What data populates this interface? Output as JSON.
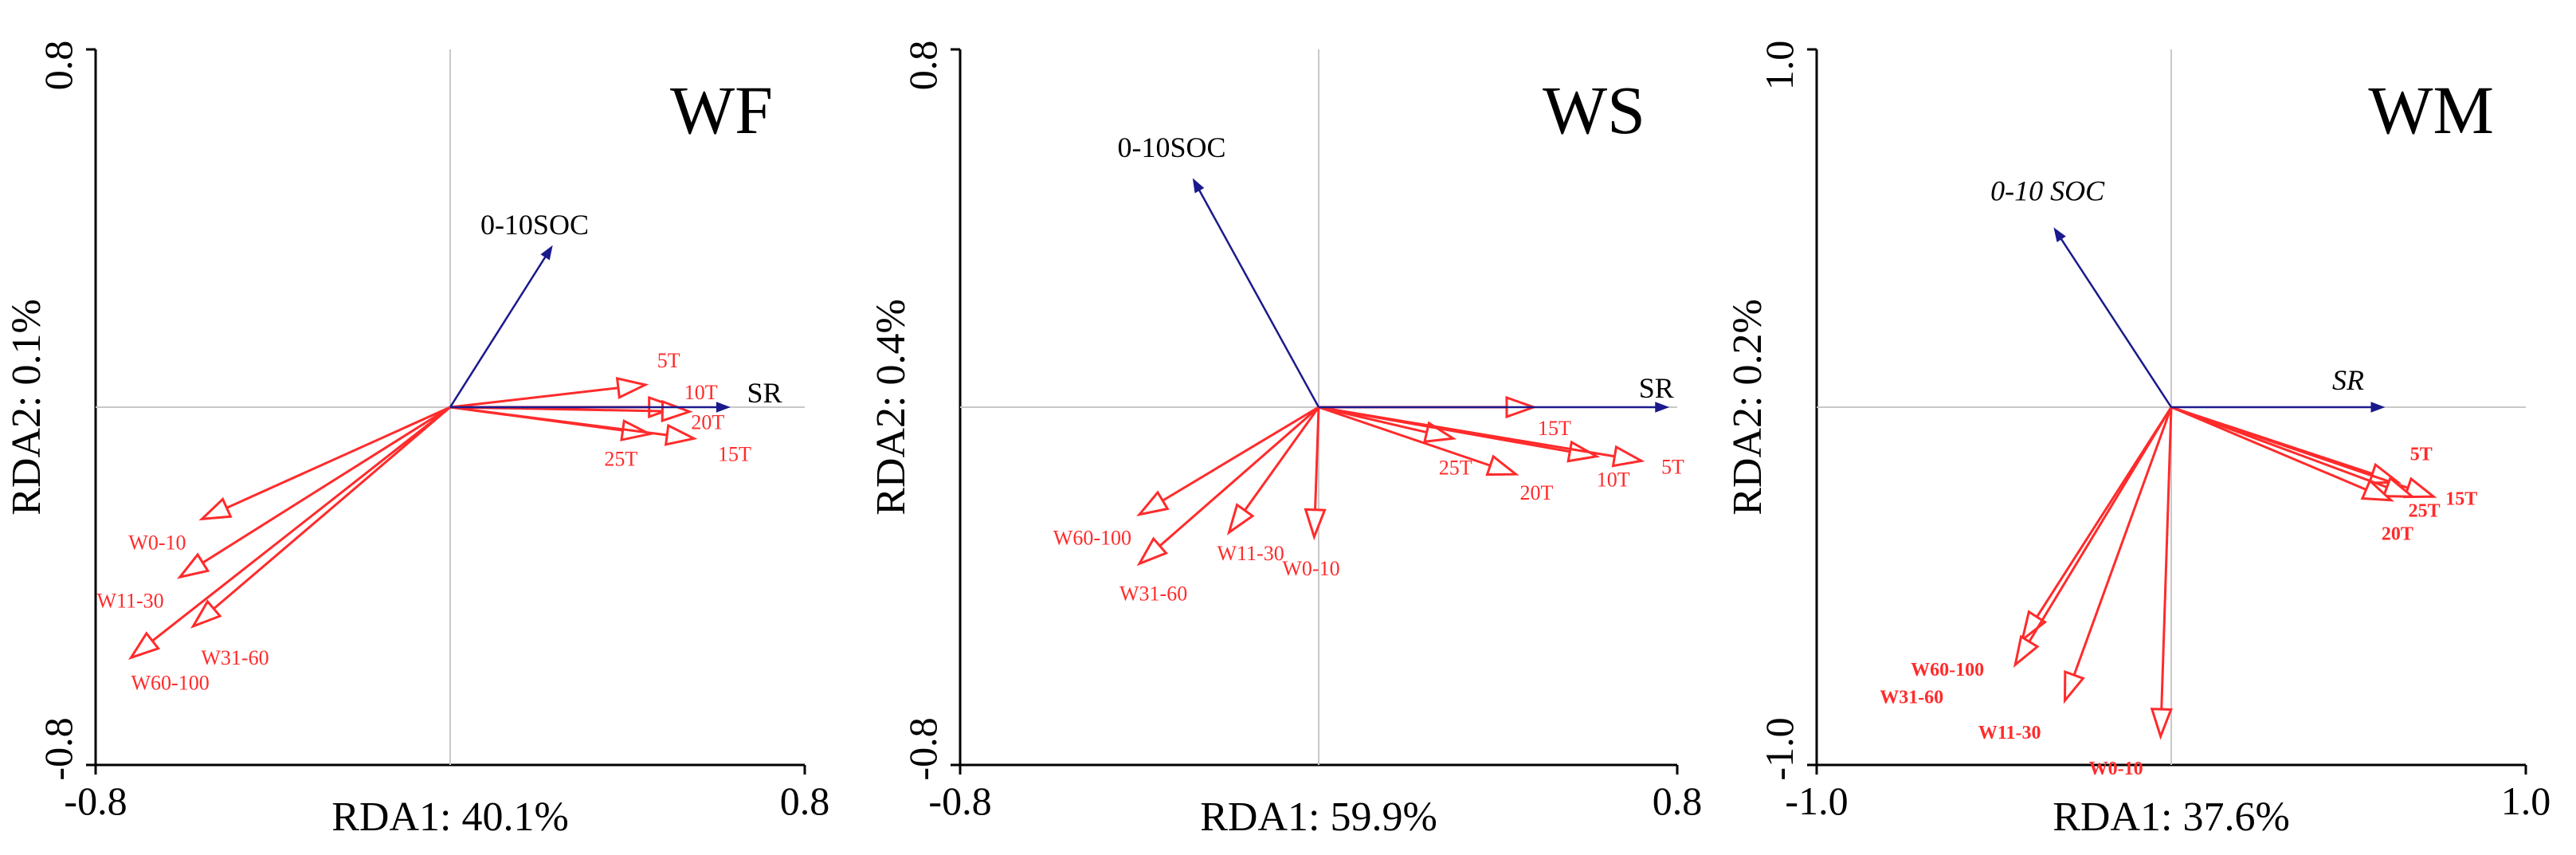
{
  "chart_data": [
    {
      "type": "scatter",
      "panel": "WF",
      "title": "WF",
      "xlabel": "RDA1: 40.1%",
      "ylabel": "RDA2: 0.1%",
      "xlim": [
        -0.8,
        0.8
      ],
      "ylim": [
        -0.8,
        0.8
      ],
      "xticks": [
        "-0.8",
        "0.8"
      ],
      "yticks": [
        "0.8",
        "-0.8"
      ],
      "label_style": "normal",
      "env_vectors": [
        {
          "name": "0-10SOC",
          "x": 0.23,
          "y": 0.36
        },
        {
          "name": "SR",
          "x": 0.63,
          "y": 0.0
        }
      ],
      "response_vectors": [
        {
          "name": "5T",
          "x": 0.44,
          "y": 0.05
        },
        {
          "name": "10T",
          "x": 0.51,
          "y": 0.0
        },
        {
          "name": "20T",
          "x": 0.54,
          "y": -0.01
        },
        {
          "name": "25T",
          "x": 0.45,
          "y": -0.06
        },
        {
          "name": "15T",
          "x": 0.55,
          "y": -0.07
        },
        {
          "name": "W0-10",
          "x": -0.56,
          "y": -0.25
        },
        {
          "name": "W11-30",
          "x": -0.61,
          "y": -0.38
        },
        {
          "name": "W31-60",
          "x": -0.58,
          "y": -0.49
        },
        {
          "name": "W60-100",
          "x": -0.72,
          "y": -0.56
        }
      ]
    },
    {
      "type": "scatter",
      "panel": "WS",
      "title": "WS",
      "xlabel": "RDA1: 59.9%",
      "ylabel": "RDA2: 0.4%",
      "xlim": [
        -0.8,
        0.8
      ],
      "ylim": [
        -0.8,
        0.8
      ],
      "xticks": [
        "-0.8",
        "0.8"
      ],
      "yticks": [
        "0.8",
        "-0.8"
      ],
      "label_style": "normal",
      "env_vectors": [
        {
          "name": "0-10SOC",
          "x": -0.28,
          "y": 0.51
        },
        {
          "name": "SR",
          "x": 0.78,
          "y": 0.0
        }
      ],
      "response_vectors": [
        {
          "name": "15T",
          "x": 0.48,
          "y": 0.0
        },
        {
          "name": "25T",
          "x": 0.3,
          "y": -0.07
        },
        {
          "name": "20T",
          "x": 0.44,
          "y": -0.15
        },
        {
          "name": "10T",
          "x": 0.62,
          "y": -0.11
        },
        {
          "name": "5T",
          "x": 0.72,
          "y": -0.12
        },
        {
          "name": "W0-10",
          "x": -0.01,
          "y": -0.29
        },
        {
          "name": "W11-30",
          "x": -0.2,
          "y": -0.28
        },
        {
          "name": "W60-100",
          "x": -0.4,
          "y": -0.24
        },
        {
          "name": "W31-60",
          "x": -0.4,
          "y": -0.35
        }
      ]
    },
    {
      "type": "scatter",
      "panel": "WM",
      "title": "WM",
      "xlabel": "RDA1: 37.6%",
      "ylabel": "RDA2: 0.2%",
      "xlim": [
        -1.0,
        1.0
      ],
      "ylim": [
        -1.0,
        1.0
      ],
      "xticks": [
        "-1.0",
        "1.0"
      ],
      "yticks": [
        "1.0",
        "-1.0"
      ],
      "label_style": "italic-bold",
      "env_vectors": [
        {
          "name": "0-10 SOC",
          "x": -0.33,
          "y": 0.5
        },
        {
          "name": "SR",
          "x": 0.6,
          "y": 0.0
        }
      ],
      "response_vectors": [
        {
          "name": "5T",
          "x": 0.64,
          "y": -0.21
        },
        {
          "name": "15T",
          "x": 0.74,
          "y": -0.25
        },
        {
          "name": "25T",
          "x": 0.68,
          "y": -0.25
        },
        {
          "name": "20T",
          "x": 0.62,
          "y": -0.26
        },
        {
          "name": "W60-100",
          "x": -0.42,
          "y": -0.65
        },
        {
          "name": "W31-60",
          "x": -0.44,
          "y": -0.72
        },
        {
          "name": "W11-30",
          "x": -0.3,
          "y": -0.82
        },
        {
          "name": "W0-10",
          "x": -0.03,
          "y": -0.92
        }
      ]
    }
  ],
  "colors": {
    "env_vector": "#1a1a8c",
    "response_vector": "#ff2b2b",
    "axis": "#000000",
    "crosshair": "#c8c8c8"
  }
}
